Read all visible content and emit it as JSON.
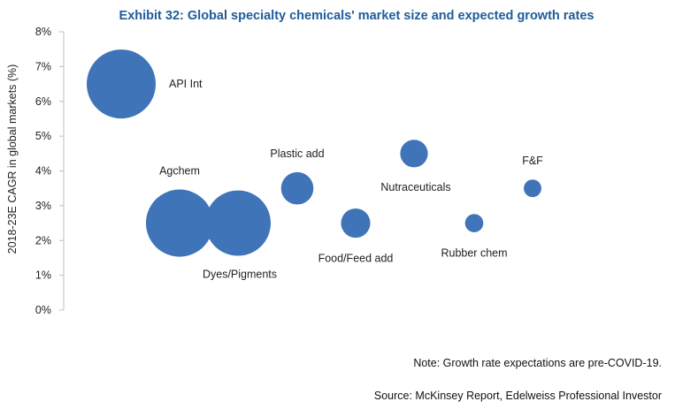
{
  "chart_data": {
    "type": "bubble",
    "title": "Exhibit 32: Global specialty chemicals' market size and expected growth rates",
    "xlabel": "",
    "ylabel": "2018-23E CAGR in global markets (%)",
    "ylim": [
      0,
      8
    ],
    "xlim": [
      0,
      11
    ],
    "y_ticks": [
      "0%",
      "1%",
      "2%",
      "3%",
      "4%",
      "5%",
      "6%",
      "7%",
      "8%"
    ],
    "color": "#3f74b8",
    "points": [
      {
        "name": "API Int",
        "x": 1,
        "y": 6.5,
        "size": 1.0
      },
      {
        "name": "Agchem",
        "x": 2,
        "y": 2.5,
        "size": 0.95
      },
      {
        "name": "Dyes/Pigments",
        "x": 3,
        "y": 2.5,
        "size": 0.9
      },
      {
        "name": "Plastic add",
        "x": 4,
        "y": 3.5,
        "size": 0.22
      },
      {
        "name": "Food/Feed add",
        "x": 5,
        "y": 2.5,
        "size": 0.18
      },
      {
        "name": "Nutraceuticals",
        "x": 6,
        "y": 4.5,
        "size": 0.16
      },
      {
        "name": "Rubber chem",
        "x": 7,
        "y": 2.5,
        "size": 0.07
      },
      {
        "name": "F&F",
        "x": 8,
        "y": 3.5,
        "size": 0.065
      }
    ]
  },
  "footer": {
    "note": "Note: Growth rate expectations are pre-COVID-19.",
    "source": "Source: McKinsey Report, Edelweiss Professional Investor"
  }
}
